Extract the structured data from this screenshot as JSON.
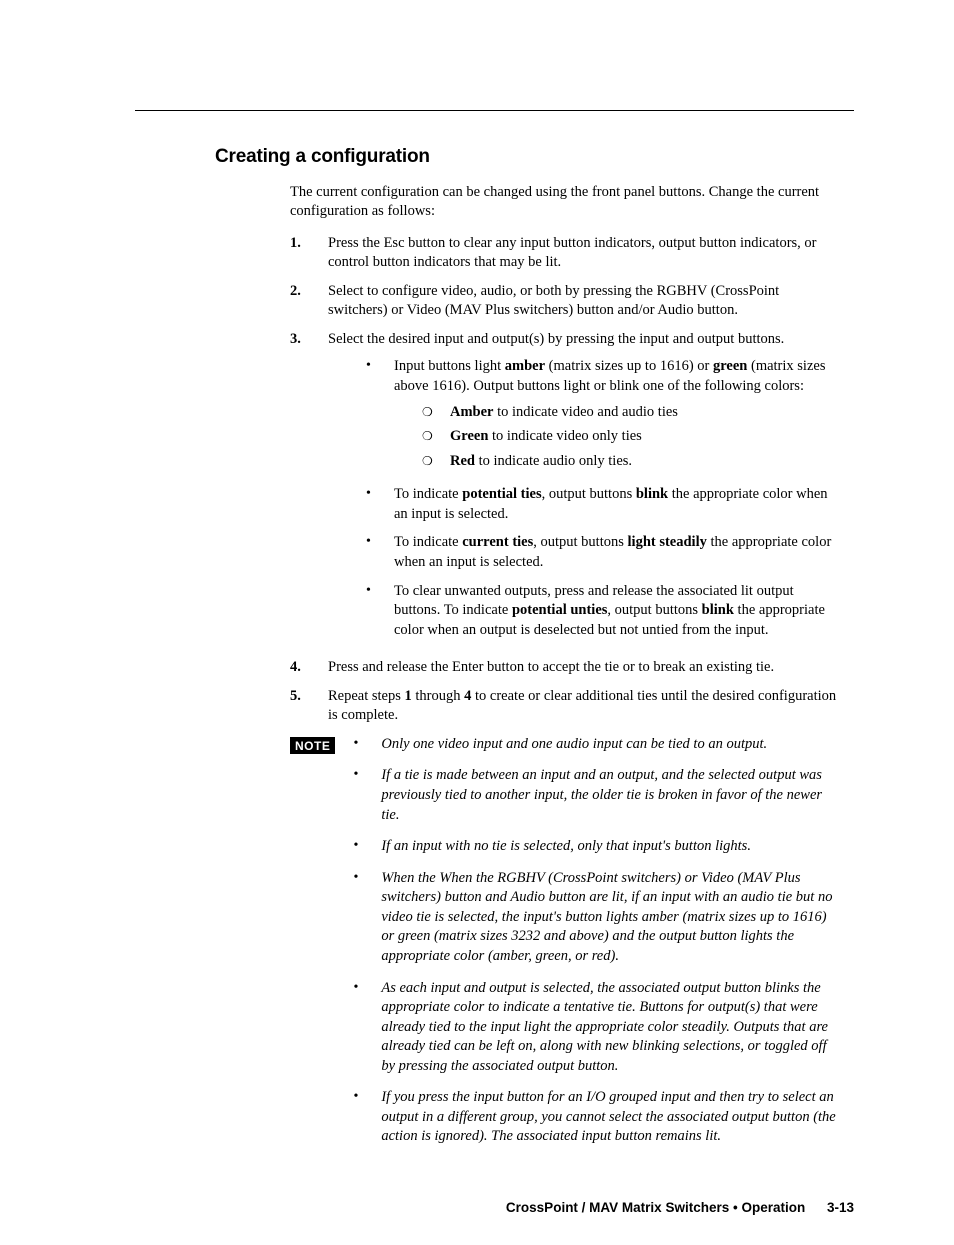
{
  "heading": "Creating a configuration",
  "intro": "The current configuration can be changed using the front panel buttons.  Change the current configuration as follows:",
  "steps": [
    {
      "n": "1",
      "pre": "Press the Esc button to clear any input button indicators, output button indicators, or control button indicators that may be lit."
    },
    {
      "n": "2",
      "pre": "Select to configure video, audio, or both by pressing the RGBHV (CrossPoint switchers) or Video (MAV Plus switchers) button and/or Audio button."
    },
    {
      "n": "3",
      "pre": "Select the desired input and output(s) by pressing the input and output buttons."
    },
    {
      "n": "4",
      "pre": "Press and release the Enter button to accept the tie or to break an existing tie."
    },
    {
      "n": "5",
      "pre_a": "Repeat steps ",
      "b1": "1",
      "mid": " through ",
      "b2": "4",
      "post": " to create or clear additional ties until the desired configuration is complete."
    }
  ],
  "step3_bullets": {
    "b1_a": "Input buttons light ",
    "b1_amber": "amber",
    "b1_b": " (matrix sizes up to 1616) or ",
    "b1_green": "green",
    "b1_c": " (matrix sizes above 1616).  Output buttons light or blink one of the following colors:",
    "sb1_bold": "Amber",
    "sb1_txt": " to indicate video and audio ties",
    "sb2_bold": "Green",
    "sb2_txt": " to indicate video only ties",
    "sb3_bold": "Red",
    "sb3_txt": " to indicate audio only ties.",
    "b2_a": "To indicate ",
    "b2_bold1": "potential ties",
    "b2_b": ", output buttons ",
    "b2_bold2": "blink",
    "b2_c": " the appropriate color when an input is selected.",
    "b3_a": "To indicate ",
    "b3_bold1": "current ties",
    "b3_b": ", output buttons ",
    "b3_bold2": "light steadily",
    "b3_c": " the appropriate color when an input is selected.",
    "b4_a": "To clear unwanted outputs, press and release the associated lit output buttons.  To indicate ",
    "b4_bold1": "potential unties",
    "b4_b": ", output buttons ",
    "b4_bold2": "blink",
    "b4_c": " the appropriate color when an output is deselected but not untied from the input."
  },
  "note_label": "NOTE",
  "note_bullets": [
    "Only one video input and one audio input can be tied to an output.",
    "If a tie is made between an input and an output, and the selected output was previously tied to another input, the older tie is broken in favor of the newer tie.",
    "If an input with no tie is selected, only that input's button lights.",
    "When the When the RGBHV (CrossPoint switchers) or Video (MAV Plus switchers) button and Audio button are lit, if an input with an audio tie but no video tie is selected, the input's button lights amber (matrix sizes up to 1616) or green (matrix sizes 3232 and above) and the output button lights the appropriate color (amber, green, or red).",
    "As each input and output is selected, the associated output button blinks the appropriate color to indicate a tentative tie.  Buttons for output(s) that were already tied to the input light the appropriate color steadily.  Outputs that are already tied can be left on, along with new blinking selections, or toggled off by pressing the associated output button.",
    "If you press the input button for an I/O grouped input and then try to select an output in a different group, you cannot select the associated output button (the action is ignored).  The associated input button remains lit."
  ],
  "footer_text": "CrossPoint / MAV Matrix Switchers • Operation",
  "footer_page": "3-13"
}
